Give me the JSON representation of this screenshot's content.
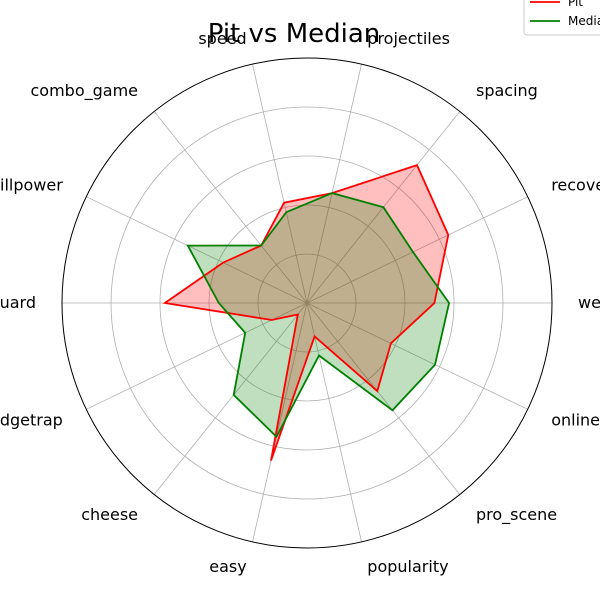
{
  "chart_data": {
    "type": "radar",
    "title": "Pit vs Median",
    "axes": [
      "weight",
      "recovery",
      "spacing",
      "projectiles",
      "speed",
      "combo_game",
      "killpower",
      "edgeguard",
      "ledgetrap",
      "cheese",
      "easy",
      "popularity",
      "pro_scene",
      "online_winrate"
    ],
    "rmax": 5,
    "grid_rings": [
      1,
      2,
      3,
      4,
      5
    ],
    "grid": true,
    "legend_position": "top-right",
    "series": [
      {
        "name": "Pit",
        "color": "#ff0000",
        "fill": "#ff0000",
        "values": [
          2.6,
          3.2,
          3.6,
          2.3,
          2.1,
          1.5,
          1.9,
          2.9,
          0.8,
          0.3,
          3.3,
          0.7,
          2.3,
          1.9
        ]
      },
      {
        "name": "Median",
        "color": "#008000",
        "fill": "#008000",
        "values": [
          2.9,
          2.4,
          2.5,
          2.3,
          1.9,
          1.5,
          2.7,
          1.8,
          1.4,
          2.4,
          2.8,
          1.1,
          2.8,
          2.9
        ]
      }
    ]
  }
}
